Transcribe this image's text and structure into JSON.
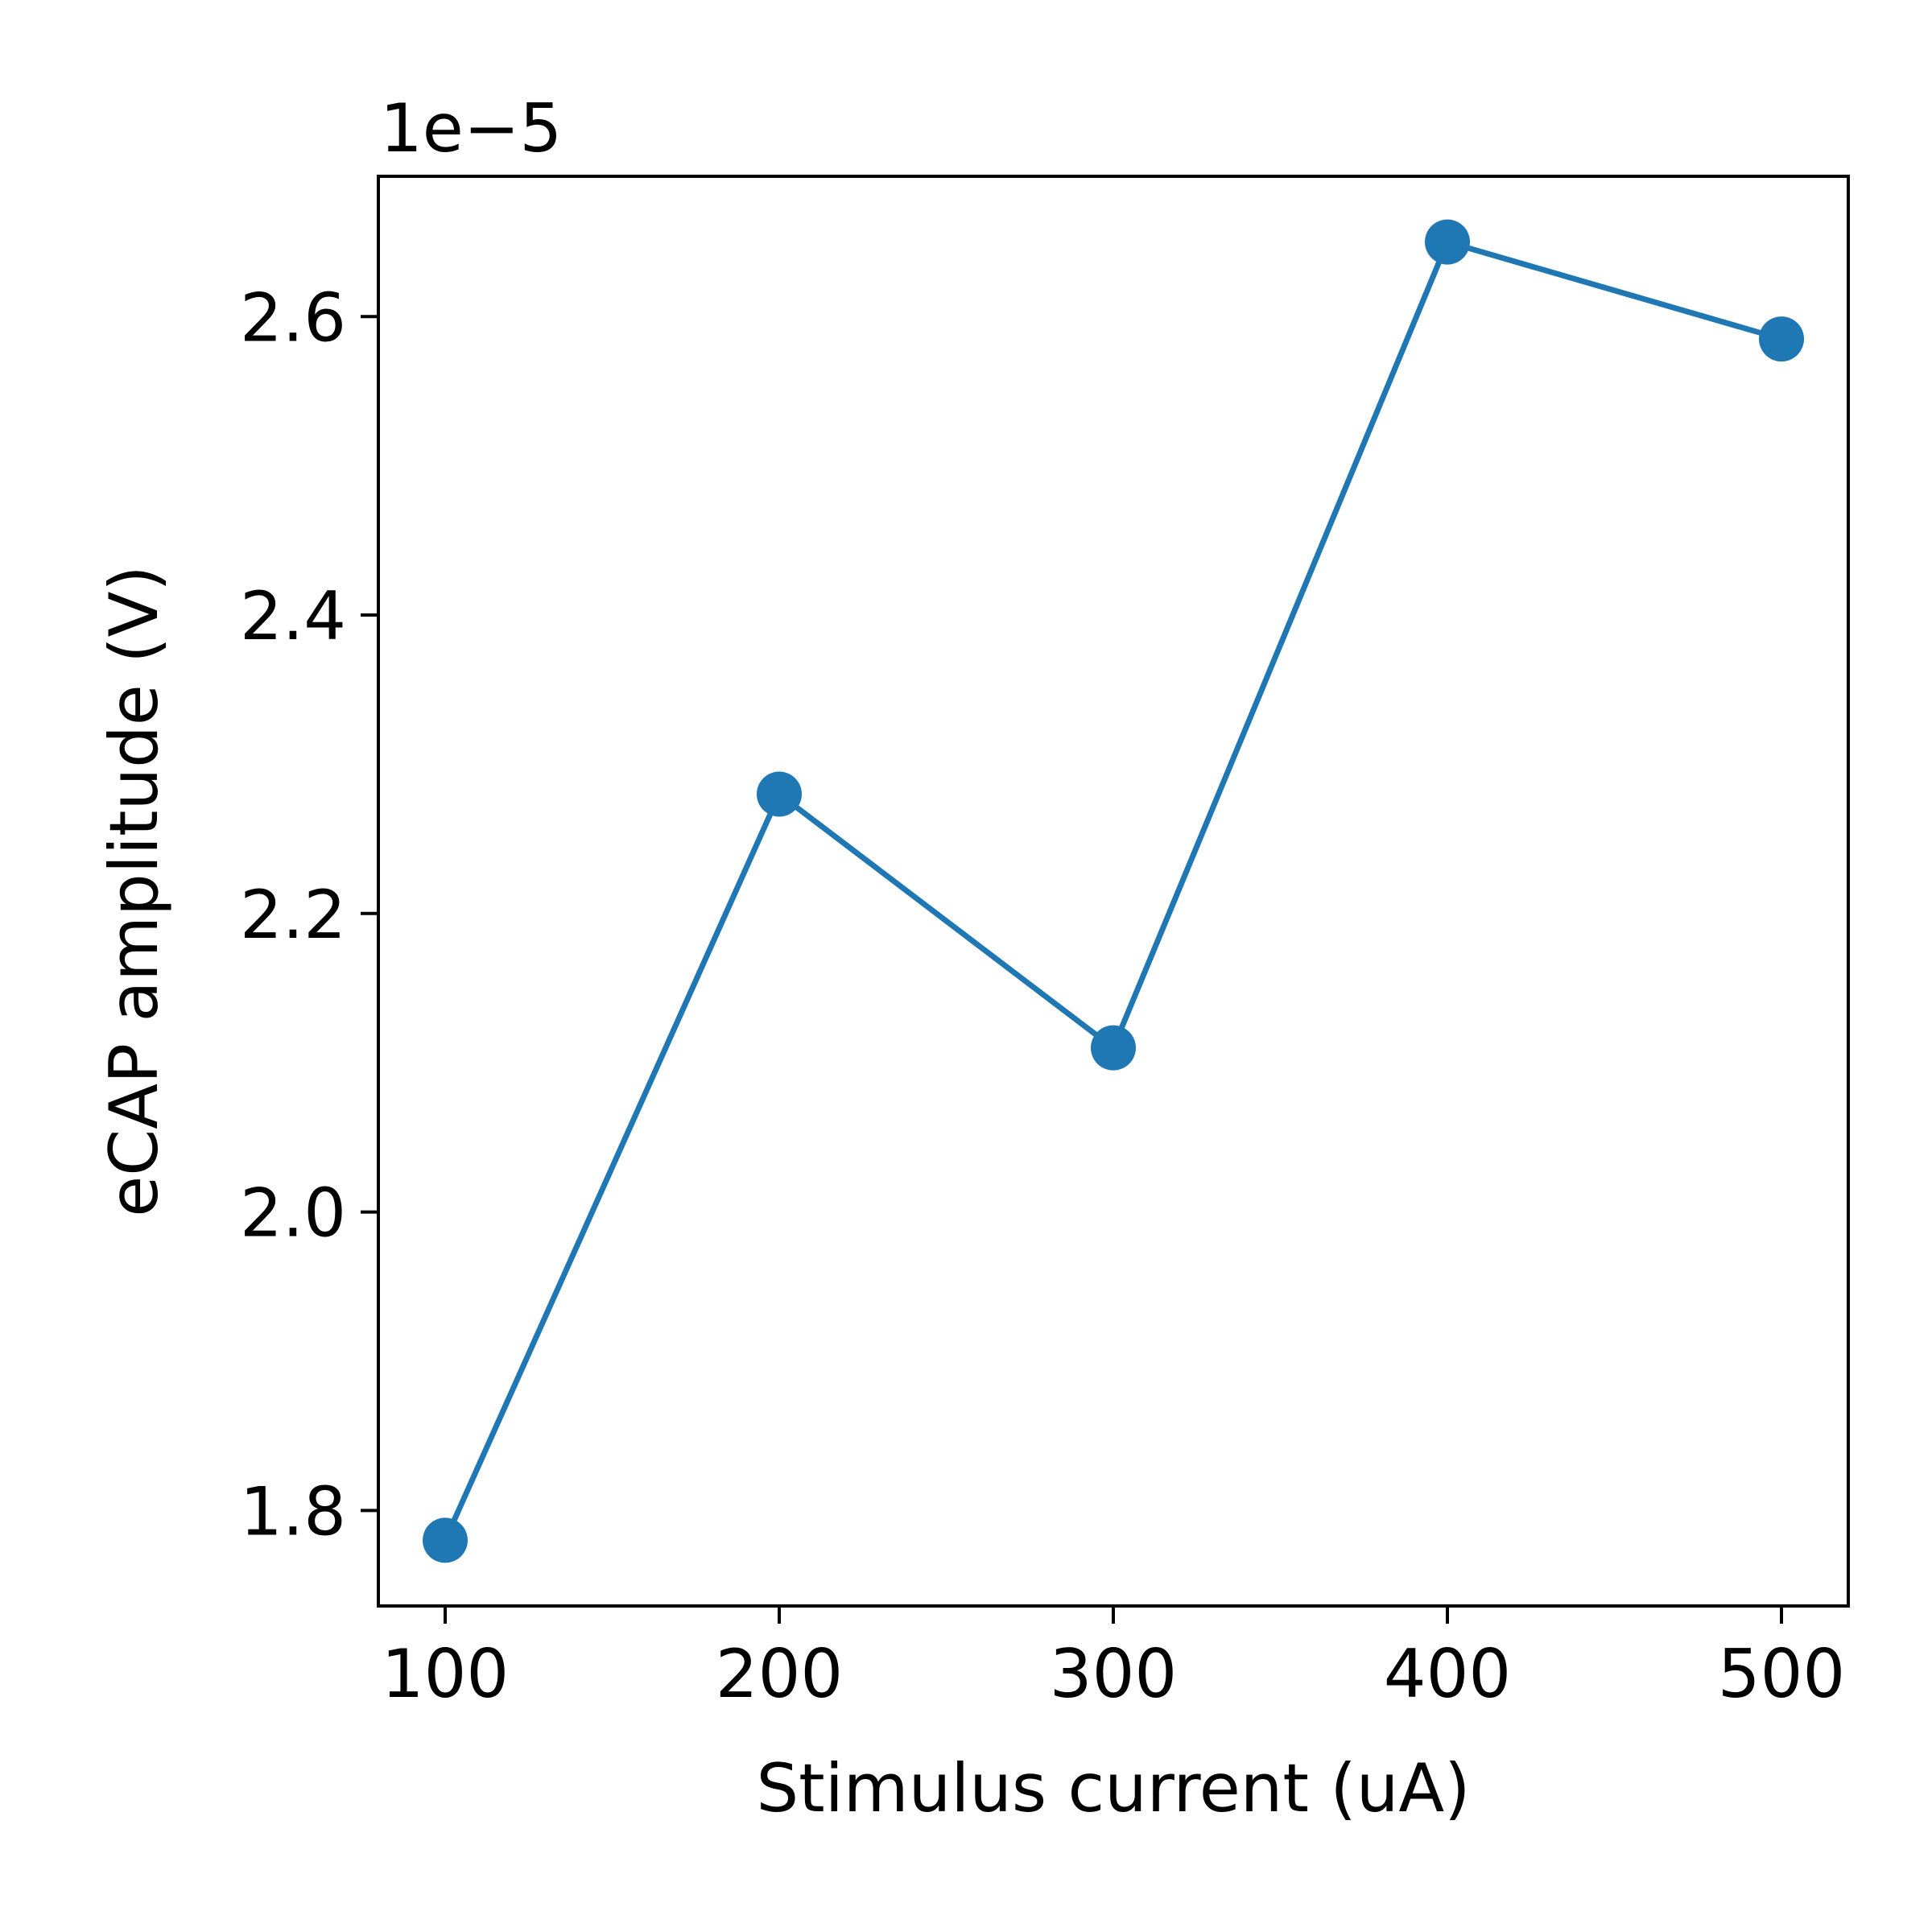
{
  "chart_data": {
    "type": "line",
    "title": "",
    "xlabel": "Stimulus current (uA)",
    "ylabel": "eCAP amplitude (V)",
    "y_offset_label": "1e−5",
    "x": [
      100,
      200,
      300,
      400,
      500
    ],
    "series": [
      {
        "values": [
          1.78e-05,
          2.28e-05,
          2.11e-05,
          2.65e-05,
          2.585e-05
        ],
        "color": "#1f77b4",
        "marker": "circle"
      }
    ],
    "xlim": [
      80,
      520
    ],
    "ylim": [
      1.736e-05,
      2.694e-05
    ],
    "x_ticks": [
      100,
      200,
      300,
      400,
      500
    ],
    "x_tick_labels": [
      "100",
      "200",
      "300",
      "400",
      "500"
    ],
    "y_ticks": [
      1.8e-05,
      2e-05,
      2.2e-05,
      2.4e-05,
      2.6e-05
    ],
    "y_tick_labels": [
      "1.8",
      "2.0",
      "2.2",
      "2.4",
      "2.6"
    ],
    "grid": false,
    "legend": "none"
  }
}
